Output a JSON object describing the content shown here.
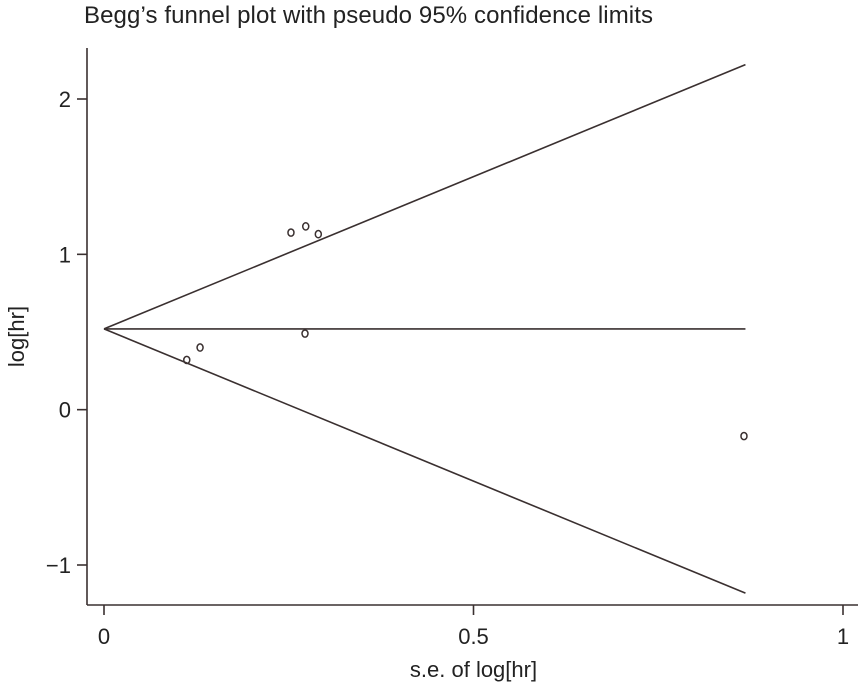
{
  "chart_data": {
    "type": "scatter",
    "title": "Begg’s funnel plot with pseudo 95% confidence limits",
    "xlabel": "s.e. of log[hr]",
    "ylabel": "log[hr]",
    "xlim": [
      0,
      1
    ],
    "ylim": [
      -1.25,
      2.45
    ],
    "xticks": [
      {
        "value": 0,
        "label": "0"
      },
      {
        "value": 0.5,
        "label": "0.5"
      },
      {
        "value": 1,
        "label": "1"
      }
    ],
    "yticks": [
      {
        "value": 2,
        "label": "2"
      },
      {
        "value": 1,
        "label": "1"
      },
      {
        "value": 0,
        "label": "0"
      },
      {
        "value": -1,
        "label": "−1"
      }
    ],
    "grid": false,
    "pooled_estimate": 0.52,
    "funnel_max_se": 0.868,
    "confidence_multiplier": 1.96,
    "points": [
      {
        "x": 0.112,
        "y": 0.32
      },
      {
        "x": 0.13,
        "y": 0.4
      },
      {
        "x": 0.253,
        "y": 1.14
      },
      {
        "x": 0.273,
        "y": 1.18
      },
      {
        "x": 0.29,
        "y": 1.13
      },
      {
        "x": 0.272,
        "y": 0.49
      },
      {
        "x": 0.866,
        "y": -0.17
      }
    ],
    "colors": {
      "line": "#3a3030",
      "marker": "#3a3030",
      "axis": "#3a3030"
    }
  }
}
